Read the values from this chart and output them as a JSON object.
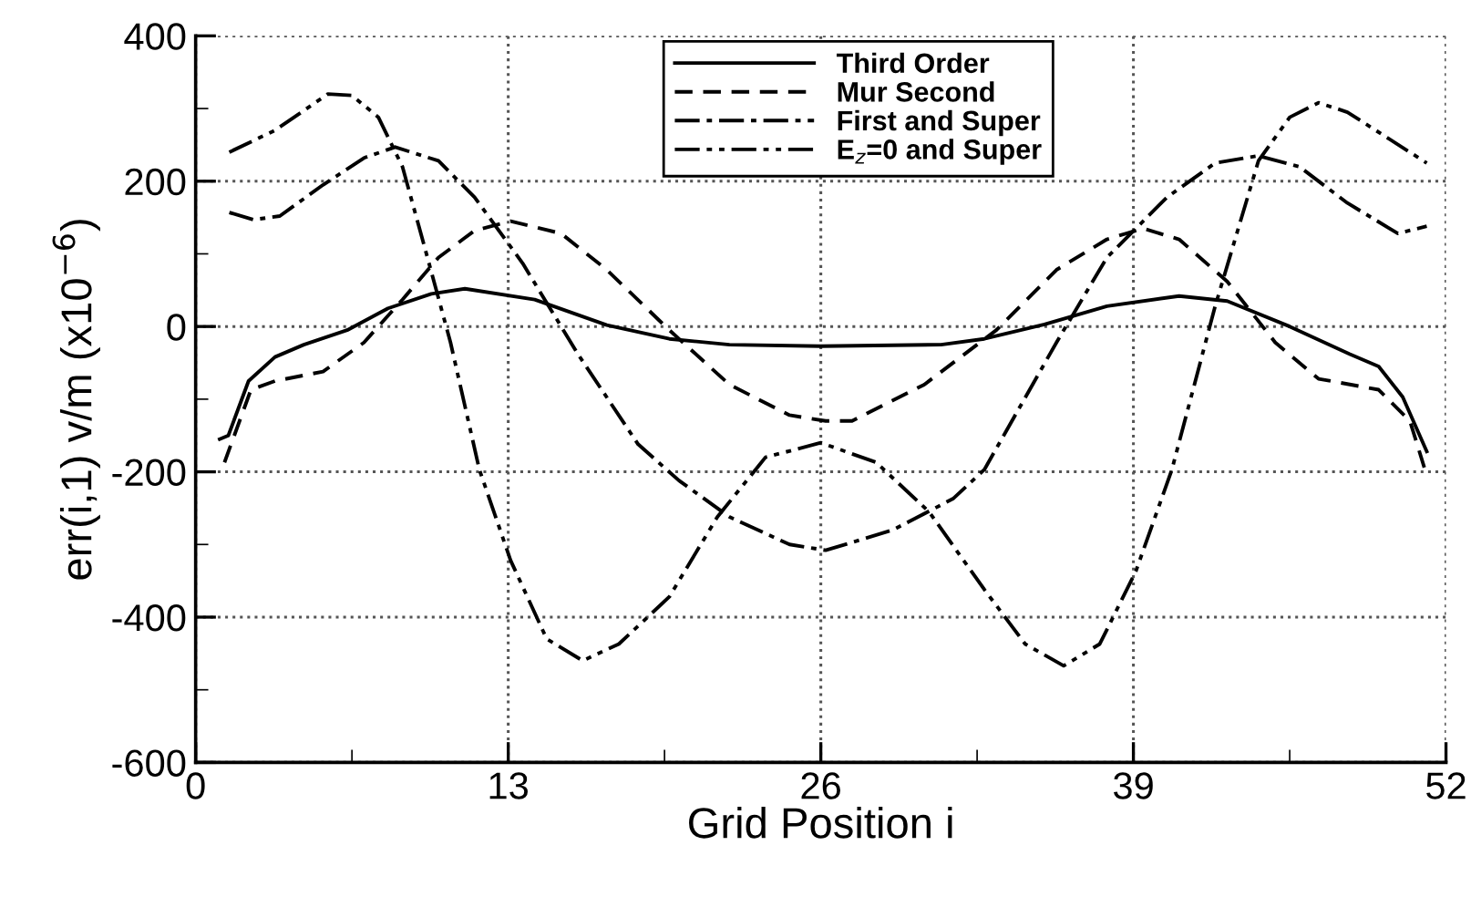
{
  "chart_data": {
    "type": "line",
    "xlabel": "Grid Position i",
    "ylabel": "err(i,1) v/m (x10$^{−6}$)",
    "xlim": [
      0,
      52
    ],
    "xticks": [
      0,
      13,
      26,
      39,
      52
    ],
    "ylim": [
      -600,
      400
    ],
    "yticks": [
      -600,
      -400,
      -200,
      0,
      200,
      400
    ],
    "grid": true,
    "legend": "top",
    "marker": "none",
    "series": [
      {
        "name": "Third Order",
        "color": "#000000",
        "line_style": "solid",
        "x": [
          1,
          1.36,
          2.2,
          3.3,
          4.5,
          6.3,
          8,
          9.8,
          11.2,
          14.1,
          17.1,
          19.7,
          22.2,
          26,
          31,
          32.8,
          35.3,
          37.9,
          40.9,
          42.9,
          45.5,
          48,
          49.2,
          50.2,
          51.2
        ],
        "values": [
          -155,
          -150,
          -75,
          -42,
          -25,
          -5,
          25,
          45,
          52,
          37,
          2,
          -17,
          -25,
          -27,
          -25,
          -17,
          3,
          28,
          42,
          35,
          0,
          -38,
          -55,
          -97,
          -172
        ]
      },
      {
        "name": "Mur Second",
        "color": "#000000",
        "line_style": "dashed",
        "x": [
          1.2,
          2.3,
          3.3,
          5.3,
          7,
          8.6,
          10.1,
          11.6,
          13.1,
          15.2,
          17.1,
          19.7,
          22.2,
          24.7,
          26.2,
          27.3,
          30.3,
          33.3,
          35.8,
          37.9,
          39.4,
          40.9,
          42.9,
          44.9,
          46.7,
          49.2,
          50.5,
          51.2
        ],
        "values": [
          -187,
          -87,
          -75,
          -62,
          -22,
          37,
          95,
          132,
          145,
          128,
          78,
          -5,
          -80,
          -122,
          -130,
          -130,
          -80,
          -5,
          78,
          120,
          135,
          120,
          62,
          -22,
          -72,
          -87,
          -130,
          -205
        ]
      },
      {
        "name": "First and Super",
        "color": "#000000",
        "line_style": "dashdot",
        "x": [
          1.4,
          2.4,
          3.5,
          5.3,
          7,
          8.3,
          10.1,
          11.6,
          13.6,
          15.9,
          18.4,
          20.1,
          22.2,
          24.7,
          26.2,
          29,
          31.5,
          32.8,
          35.8,
          37.9,
          40.4,
          42.4,
          44.2,
          45.9,
          47.9,
          50,
          51.2
        ],
        "values": [
          157,
          147,
          152,
          195,
          232,
          247,
          228,
          178,
          87,
          -38,
          -162,
          -212,
          -262,
          -300,
          -308,
          -280,
          -237,
          -197,
          -22,
          95,
          178,
          225,
          235,
          220,
          170,
          128,
          138
        ]
      },
      {
        "name": "E$_{z}$=0 and Super",
        "color": "#000000",
        "line_style": "dashdotdot",
        "x": [
          1.4,
          3.3,
          5.5,
          6.5,
          7.6,
          8.6,
          9.5,
          10.6,
          11.8,
          13.1,
          14.6,
          16.1,
          17.6,
          19.7,
          21.7,
          23.7,
          26,
          28.3,
          30.5,
          32.8,
          34.5,
          36.1,
          37.6,
          39.1,
          40.6,
          42.4,
          44.2,
          45.5,
          46.7,
          47.9,
          51.2
        ],
        "values": [
          240,
          270,
          320,
          318,
          288,
          220,
          112,
          -22,
          -197,
          -322,
          -430,
          -460,
          -437,
          -372,
          -262,
          -180,
          -160,
          -187,
          -255,
          -362,
          -437,
          -467,
          -437,
          -337,
          -197,
          28,
          228,
          288,
          308,
          295,
          225
        ]
      }
    ]
  }
}
